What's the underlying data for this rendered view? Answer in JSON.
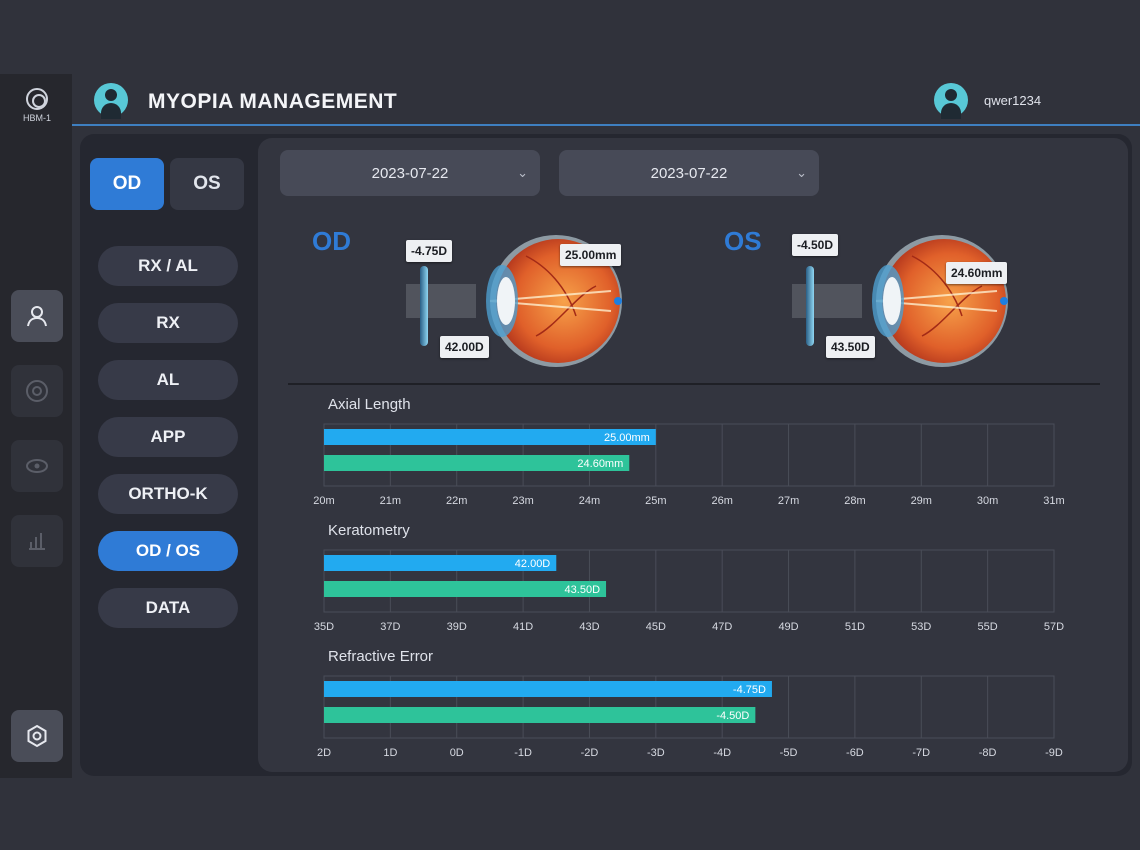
{
  "sidebar": {
    "logo_text": "HBM-1",
    "icons": [
      "user-icon",
      "eye-scan-icon",
      "lens-icon",
      "chart-icon",
      "settings-icon"
    ]
  },
  "header": {
    "title": "MYOPIA MANAGEMENT",
    "user": "qwer1234"
  },
  "eye_toggle": {
    "od": "OD",
    "os": "OS",
    "selected": "OD"
  },
  "menu": [
    {
      "label": "RX / AL"
    },
    {
      "label": "RX"
    },
    {
      "label": "AL"
    },
    {
      "label": "APP"
    },
    {
      "label": "ORTHO-K"
    },
    {
      "label": "OD / OS",
      "active": true
    },
    {
      "label": "DATA"
    }
  ],
  "dates": {
    "start": "2023-07-22",
    "end": "2023-07-22"
  },
  "eyes": {
    "od": {
      "label": "OD",
      "rx": "-4.75D",
      "al": "25.00mm",
      "k": "42.00D"
    },
    "os": {
      "label": "OS",
      "rx": "-4.50D",
      "al": "24.60mm",
      "k": "43.50D"
    }
  },
  "colors": {
    "od": "#22aaf0",
    "os": "#2ec39a",
    "accent": "#2f7bd6",
    "teal": "#58c8d6"
  },
  "chart_data": [
    {
      "type": "bar",
      "orientation": "horizontal",
      "title": "Axial Length",
      "ticks": [
        "20m",
        "21m",
        "22m",
        "23m",
        "24m",
        "25m",
        "26m",
        "27m",
        "28m",
        "29m",
        "30m",
        "31m"
      ],
      "xlim": [
        20,
        31
      ],
      "series": [
        {
          "values": [
            25.0
          ],
          "label": "25.00mm"
        },
        {
          "values": [
            24.6
          ],
          "label": "24.60mm"
        }
      ]
    },
    {
      "type": "bar",
      "orientation": "horizontal",
      "title": "Keratometry",
      "ticks": [
        "35D",
        "37D",
        "39D",
        "41D",
        "43D",
        "45D",
        "47D",
        "49D",
        "51D",
        "53D",
        "55D",
        "57D"
      ],
      "xlim": [
        35,
        57
      ],
      "series": [
        {
          "values": [
            42.0
          ],
          "label": "42.00D"
        },
        {
          "values": [
            43.5
          ],
          "label": "43.50D"
        }
      ]
    },
    {
      "type": "bar",
      "orientation": "horizontal",
      "title": "Refractive Error",
      "ticks": [
        "2D",
        "1D",
        "0D",
        "-1D",
        "-2D",
        "-3D",
        "-4D",
        "-5D",
        "-6D",
        "-7D",
        "-8D",
        "-9D"
      ],
      "xlim": [
        2,
        -9
      ],
      "series": [
        {
          "values": [
            -4.75
          ],
          "label": "-4.75D"
        },
        {
          "values": [
            -4.5
          ],
          "label": "-4.50D"
        }
      ]
    }
  ]
}
